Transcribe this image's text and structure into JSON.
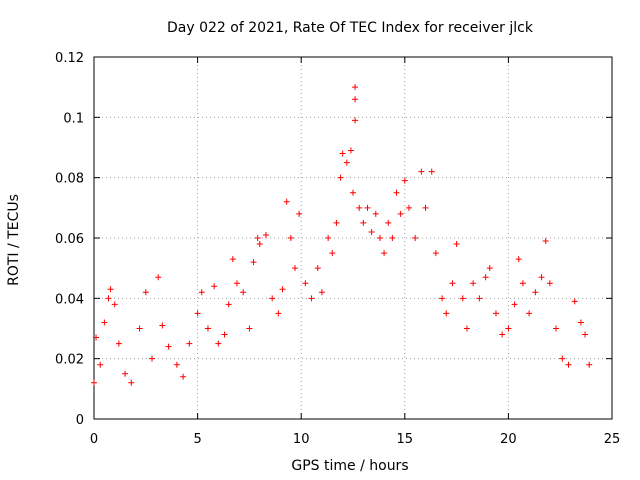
{
  "chart_data": {
    "type": "scatter",
    "title": "Day 022 of 2021, Rate Of TEC Index for receiver jlck",
    "xlabel": "GPS time / hours",
    "ylabel": "ROTI / TECUs",
    "xlim": [
      0,
      25
    ],
    "ylim": [
      0,
      0.12
    ],
    "x_ticks": [
      0,
      5,
      10,
      15,
      20,
      25
    ],
    "x_tick_labels": [
      "0",
      "5",
      "10",
      "15",
      "20",
      "25"
    ],
    "y_ticks": [
      0,
      0.02,
      0.04,
      0.06,
      0.08,
      0.1,
      0.12
    ],
    "y_tick_labels": [
      "0",
      "0.02",
      "0.04",
      "0.06",
      "0.08",
      "0.1",
      "0.12"
    ],
    "grid": true,
    "grid_style": "dotted",
    "marker": "+",
    "point_color": "#ff0000",
    "series": [
      {
        "points": [
          [
            0.0,
            0.012
          ],
          [
            0.1,
            0.027
          ],
          [
            0.3,
            0.018
          ],
          [
            0.5,
            0.032
          ],
          [
            0.7,
            0.04
          ],
          [
            0.8,
            0.043
          ],
          [
            1.0,
            0.038
          ],
          [
            1.2,
            0.025
          ],
          [
            1.5,
            0.015
          ],
          [
            1.8,
            0.012
          ],
          [
            2.2,
            0.03
          ],
          [
            2.5,
            0.042
          ],
          [
            2.8,
            0.02
          ],
          [
            3.1,
            0.047
          ],
          [
            3.3,
            0.031
          ],
          [
            3.6,
            0.024
          ],
          [
            4.0,
            0.018
          ],
          [
            4.3,
            0.014
          ],
          [
            4.6,
            0.025
          ],
          [
            5.0,
            0.035
          ],
          [
            5.2,
            0.042
          ],
          [
            5.5,
            0.03
          ],
          [
            5.8,
            0.044
          ],
          [
            6.0,
            0.025
          ],
          [
            6.3,
            0.028
          ],
          [
            6.5,
            0.038
          ],
          [
            6.7,
            0.053
          ],
          [
            6.9,
            0.045
          ],
          [
            7.2,
            0.042
          ],
          [
            7.5,
            0.03
          ],
          [
            7.7,
            0.052
          ],
          [
            7.9,
            0.06
          ],
          [
            8.0,
            0.058
          ],
          [
            8.3,
            0.061
          ],
          [
            8.6,
            0.04
          ],
          [
            8.9,
            0.035
          ],
          [
            9.1,
            0.043
          ],
          [
            9.3,
            0.072
          ],
          [
            9.5,
            0.06
          ],
          [
            9.7,
            0.05
          ],
          [
            9.9,
            0.068
          ],
          [
            10.2,
            0.045
          ],
          [
            10.5,
            0.04
          ],
          [
            10.8,
            0.05
          ],
          [
            11.0,
            0.042
          ],
          [
            11.3,
            0.06
          ],
          [
            11.5,
            0.055
          ],
          [
            11.7,
            0.065
          ],
          [
            11.9,
            0.08
          ],
          [
            12.0,
            0.088
          ],
          [
            12.2,
            0.085
          ],
          [
            12.4,
            0.089
          ],
          [
            12.5,
            0.075
          ],
          [
            12.6,
            0.11
          ],
          [
            12.6,
            0.106
          ],
          [
            12.6,
            0.099
          ],
          [
            12.8,
            0.07
          ],
          [
            13.0,
            0.065
          ],
          [
            13.2,
            0.07
          ],
          [
            13.4,
            0.062
          ],
          [
            13.6,
            0.068
          ],
          [
            13.8,
            0.06
          ],
          [
            14.0,
            0.055
          ],
          [
            14.2,
            0.065
          ],
          [
            14.4,
            0.06
          ],
          [
            14.6,
            0.075
          ],
          [
            14.8,
            0.068
          ],
          [
            15.0,
            0.079
          ],
          [
            15.2,
            0.07
          ],
          [
            15.5,
            0.06
          ],
          [
            15.8,
            0.082
          ],
          [
            16.0,
            0.07
          ],
          [
            16.3,
            0.082
          ],
          [
            16.5,
            0.055
          ],
          [
            16.8,
            0.04
          ],
          [
            17.0,
            0.035
          ],
          [
            17.3,
            0.045
          ],
          [
            17.5,
            0.058
          ],
          [
            17.8,
            0.04
          ],
          [
            18.0,
            0.03
          ],
          [
            18.3,
            0.045
          ],
          [
            18.6,
            0.04
          ],
          [
            18.9,
            0.047
          ],
          [
            19.1,
            0.05
          ],
          [
            19.4,
            0.035
          ],
          [
            19.7,
            0.028
          ],
          [
            20.0,
            0.03
          ],
          [
            20.3,
            0.038
          ],
          [
            20.5,
            0.053
          ],
          [
            20.7,
            0.045
          ],
          [
            21.0,
            0.035
          ],
          [
            21.3,
            0.042
          ],
          [
            21.6,
            0.047
          ],
          [
            21.8,
            0.059
          ],
          [
            22.0,
            0.045
          ],
          [
            22.3,
            0.03
          ],
          [
            22.6,
            0.02
          ],
          [
            22.9,
            0.018
          ],
          [
            23.2,
            0.039
          ],
          [
            23.5,
            0.032
          ],
          [
            23.7,
            0.028
          ],
          [
            23.9,
            0.018
          ]
        ]
      }
    ]
  }
}
